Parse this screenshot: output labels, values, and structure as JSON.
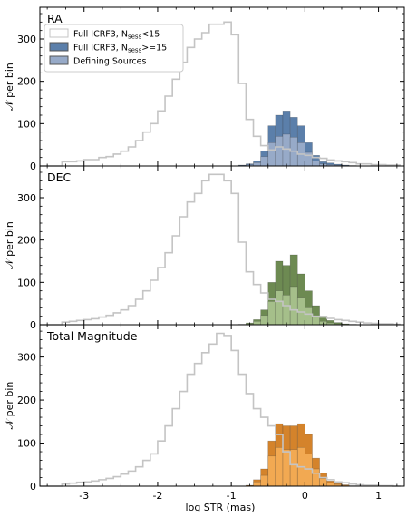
{
  "chart_data": {
    "type": "histogram",
    "xlabel": "log STR (mas)",
    "x_ticks": [
      -3,
      -2,
      -1,
      0,
      1
    ],
    "xlim": [
      -3.6,
      1.35
    ],
    "bin_edges": [
      -3.6,
      -3.5,
      -3.4,
      -3.3,
      -3.2,
      -3.1,
      -3.0,
      -2.9,
      -2.8,
      -2.7,
      -2.6,
      -2.5,
      -2.4,
      -2.3,
      -2.2,
      -2.1,
      -2.0,
      -1.9,
      -1.8,
      -1.7,
      -1.6,
      -1.5,
      -1.4,
      -1.3,
      -1.2,
      -1.1,
      -1.0,
      -0.9,
      -0.8,
      -0.7,
      -0.6,
      -0.5,
      -0.4,
      -0.3,
      -0.2,
      -0.1,
      0.0,
      0.1,
      0.2,
      0.3,
      0.4,
      0.5,
      0.6,
      0.7,
      0.8,
      0.9,
      1.0,
      1.1,
      1.2,
      1.3
    ],
    "legend": {
      "placement": "top-left",
      "entries": [
        {
          "label_main": "Full ICRF3, N",
          "label_sub": "sess",
          "label_tail": "<15"
        },
        {
          "label_main": "Full ICRF3, N",
          "label_sub": "sess",
          "label_tail": ">=15"
        },
        {
          "label_main": "Defining Sources",
          "label_sub": "",
          "label_tail": ""
        }
      ]
    },
    "panels": [
      {
        "title": "RA",
        "ylabel": "𝒩 per bin",
        "ylim": [
          0,
          375
        ],
        "y_ticks": [
          0,
          100,
          200,
          300
        ],
        "colors": {
          "outline": "#c4c4c4",
          "fill_main": "#5b7faa",
          "fill_def": "#97aac8"
        },
        "series": [
          {
            "name": "Full ICRF3, Nsess<15",
            "kind": "step",
            "values": [
              0,
              0,
              0,
              10,
              10,
              12,
              15,
              15,
              20,
              22,
              28,
              35,
              45,
              60,
              80,
              100,
              130,
              165,
              205,
              245,
              280,
              300,
              315,
              335,
              335,
              340,
              310,
              195,
              110,
              70,
              48,
              38,
              45,
              40,
              35,
              28,
              25,
              20,
              18,
              14,
              12,
              10,
              8,
              5,
              5,
              3,
              3,
              2,
              2
            ]
          },
          {
            "name": "Full ICRF3, Nsess>=15",
            "kind": "bar",
            "values": [
              0,
              0,
              0,
              0,
              0,
              0,
              0,
              0,
              0,
              0,
              0,
              0,
              0,
              0,
              0,
              0,
              0,
              0,
              0,
              0,
              0,
              0,
              0,
              0,
              0,
              0,
              0,
              2,
              5,
              12,
              35,
              95,
              120,
              130,
              115,
              95,
              55,
              25,
              10,
              7,
              4,
              2,
              1,
              0,
              0,
              0,
              0,
              0,
              0
            ]
          },
          {
            "name": "Defining Sources",
            "kind": "bar",
            "values": [
              0,
              0,
              0,
              0,
              0,
              0,
              0,
              0,
              0,
              0,
              0,
              0,
              0,
              0,
              0,
              0,
              0,
              0,
              0,
              0,
              0,
              0,
              0,
              0,
              0,
              0,
              0,
              1,
              3,
              8,
              22,
              55,
              70,
              75,
              68,
              55,
              32,
              12,
              5,
              3,
              2,
              1,
              0,
              0,
              0,
              0,
              0,
              0,
              0
            ]
          }
        ]
      },
      {
        "title": "DEC",
        "ylabel": "𝒩 per bin",
        "ylim": [
          0,
          375
        ],
        "y_ticks": [
          0,
          100,
          200,
          300
        ],
        "colors": {
          "outline": "#c4c4c4",
          "fill_main": "#6d8a52",
          "fill_def": "#a5bf8a"
        },
        "series": [
          {
            "name": "Full ICRF3, Nsess<15",
            "kind": "step",
            "values": [
              0,
              0,
              0,
              6,
              8,
              10,
              12,
              14,
              18,
              22,
              28,
              35,
              45,
              60,
              80,
              105,
              135,
              170,
              210,
              255,
              290,
              310,
              340,
              355,
              355,
              340,
              310,
              195,
              125,
              95,
              75,
              60,
              55,
              45,
              35,
              30,
              25,
              20,
              18,
              15,
              12,
              10,
              8,
              6,
              4,
              3,
              2,
              2,
              1
            ]
          },
          {
            "name": "Full ICRF3, Nsess>=15",
            "kind": "bar",
            "values": [
              0,
              0,
              0,
              0,
              0,
              0,
              0,
              0,
              0,
              0,
              0,
              0,
              0,
              0,
              0,
              0,
              0,
              0,
              0,
              0,
              0,
              0,
              0,
              0,
              0,
              0,
              0,
              1,
              4,
              12,
              35,
              100,
              150,
              140,
              165,
              120,
              80,
              45,
              20,
              10,
              5,
              2,
              1,
              0,
              0,
              0,
              0,
              0,
              0
            ]
          },
          {
            "name": "Defining Sources",
            "kind": "bar",
            "values": [
              0,
              0,
              0,
              0,
              0,
              0,
              0,
              0,
              0,
              0,
              0,
              0,
              0,
              0,
              0,
              0,
              0,
              0,
              0,
              0,
              0,
              0,
              0,
              0,
              0,
              0,
              0,
              0,
              2,
              8,
              22,
              55,
              80,
              70,
              90,
              65,
              40,
              20,
              8,
              4,
              2,
              1,
              0,
              0,
              0,
              0,
              0,
              0,
              0
            ]
          }
        ]
      },
      {
        "title": "Total Magnitude",
        "ylabel": "𝒩 per bin",
        "ylim": [
          0,
          375
        ],
        "y_ticks": [
          0,
          100,
          200,
          300
        ],
        "colors": {
          "outline": "#c4c4c4",
          "fill_main": "#d4832b",
          "fill_def": "#f2a952"
        },
        "series": [
          {
            "name": "Full ICRF3, Nsess<15",
            "kind": "step",
            "values": [
              0,
              0,
              0,
              5,
              7,
              9,
              10,
              12,
              15,
              18,
              22,
              28,
              35,
              45,
              60,
              75,
              105,
              140,
              180,
              220,
              260,
              285,
              310,
              330,
              355,
              350,
              315,
              260,
              215,
              180,
              160,
              140,
              120,
              80,
              50,
              45,
              40,
              30,
              20,
              15,
              10,
              8,
              5,
              3,
              2,
              2,
              1,
              1,
              0
            ]
          },
          {
            "name": "Full ICRF3, Nsess>=15",
            "kind": "bar",
            "values": [
              0,
              0,
              0,
              0,
              0,
              0,
              0,
              0,
              0,
              0,
              0,
              0,
              0,
              0,
              0,
              0,
              0,
              0,
              0,
              0,
              0,
              0,
              0,
              0,
              0,
              0,
              0,
              0,
              2,
              15,
              40,
              105,
              145,
              140,
              140,
              145,
              120,
              65,
              30,
              12,
              6,
              3,
              1,
              0,
              0,
              0,
              0,
              0,
              0
            ]
          },
          {
            "name": "Defining Sources",
            "kind": "bar",
            "values": [
              0,
              0,
              0,
              0,
              0,
              0,
              0,
              0,
              0,
              0,
              0,
              0,
              0,
              0,
              0,
              0,
              0,
              0,
              0,
              0,
              0,
              0,
              0,
              0,
              0,
              0,
              0,
              0,
              1,
              10,
              25,
              70,
              90,
              85,
              85,
              90,
              75,
              40,
              18,
              8,
              4,
              2,
              0,
              0,
              0,
              0,
              0,
              0,
              0
            ]
          }
        ]
      }
    ]
  }
}
